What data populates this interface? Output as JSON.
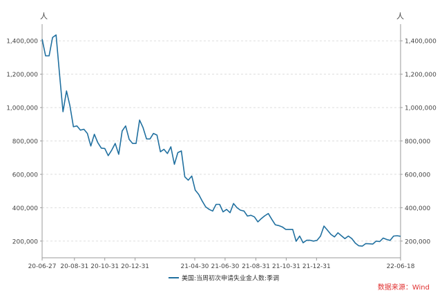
{
  "chart_data": {
    "type": "line",
    "title": "",
    "xlabel": "",
    "ylabel_left_unit": "人",
    "ylabel_right_unit": "人",
    "ylim": [
      100000,
      1500000
    ],
    "y_ticks": [
      200000,
      400000,
      600000,
      800000,
      1000000,
      1200000,
      1400000
    ],
    "y_tick_labels": [
      "200,000",
      "400,000",
      "600,000",
      "800,000",
      "1,000,000",
      "1,200,000",
      "1,400,000"
    ],
    "x_tick_labels": [
      "20-06-27",
      "20-08-31",
      "20-10-31",
      "20-12-31",
      "21-04-30",
      "21-06-30",
      "21-08-31",
      "21-10-31",
      "21-12-31",
      "22-06-18"
    ],
    "grid": "horizontal dashed",
    "legend_position": "bottom-center",
    "series": [
      {
        "name": "美国:当周初次申请失业金人数:季调",
        "color": "#1f6f9f",
        "x": [
          "20-06-27",
          "20-07-04",
          "20-07-11",
          "20-07-18",
          "20-07-25",
          "20-08-01",
          "20-08-08",
          "20-08-15",
          "20-08-22",
          "20-08-29",
          "20-09-05",
          "20-09-12",
          "20-09-19",
          "20-09-26",
          "20-10-03",
          "20-10-10",
          "20-10-17",
          "20-10-24",
          "20-10-31",
          "20-11-07",
          "20-11-14",
          "20-11-21",
          "20-11-28",
          "20-12-05",
          "20-12-12",
          "20-12-19",
          "20-12-26",
          "21-01-02",
          "21-01-09",
          "21-01-16",
          "21-01-23",
          "21-01-30",
          "21-02-06",
          "21-02-13",
          "21-02-20",
          "21-02-27",
          "21-03-06",
          "21-03-13",
          "21-03-20",
          "21-03-27",
          "21-04-03",
          "21-04-10",
          "21-04-17",
          "21-04-24",
          "21-05-01",
          "21-05-08",
          "21-05-15",
          "21-05-22",
          "21-05-29",
          "21-06-05",
          "21-06-12",
          "21-06-19",
          "21-06-26",
          "21-07-03",
          "21-07-10",
          "21-07-17",
          "21-07-24",
          "21-07-31",
          "21-08-07",
          "21-08-14",
          "21-08-21",
          "21-08-28",
          "21-09-04",
          "21-09-11",
          "21-09-18",
          "21-09-25",
          "21-10-02",
          "21-10-09",
          "21-10-16",
          "21-10-23",
          "21-10-30",
          "21-11-06",
          "21-11-13",
          "21-11-20",
          "21-11-27",
          "21-12-04",
          "21-12-11",
          "21-12-18",
          "21-12-25",
          "22-01-01",
          "22-01-08",
          "22-01-15",
          "22-01-22",
          "22-01-29",
          "22-02-05",
          "22-02-12",
          "22-02-19",
          "22-02-26",
          "22-03-05",
          "22-03-12",
          "22-03-19",
          "22-03-26",
          "22-04-02",
          "22-04-09",
          "22-04-16",
          "22-04-23",
          "22-04-30",
          "22-05-07",
          "22-05-14",
          "22-05-21",
          "22-05-28",
          "22-06-04",
          "22-06-11",
          "22-06-18"
        ],
        "values": [
          1410000,
          1310000,
          1310000,
          1420000,
          1435000,
          1200000,
          975000,
          1100000,
          1010000,
          885000,
          890000,
          865000,
          870000,
          845000,
          770000,
          840000,
          790000,
          757000,
          755000,
          712000,
          745000,
          785000,
          720000,
          860000,
          890000,
          810000,
          785000,
          785000,
          925000,
          880000,
          812000,
          812000,
          845000,
          835000,
          735000,
          750000,
          725000,
          765000,
          660000,
          730000,
          740000,
          585000,
          565000,
          590000,
          505000,
          480000,
          440000,
          405000,
          390000,
          380000,
          420000,
          420000,
          375000,
          390000,
          370000,
          425000,
          400000,
          385000,
          380000,
          350000,
          355000,
          345000,
          315000,
          335000,
          352000,
          365000,
          330000,
          298000,
          293000,
          285000,
          270000,
          270000,
          270000,
          199000,
          230000,
          190000,
          205000,
          205000,
          200000,
          205000,
          230000,
          290000,
          265000,
          240000,
          225000,
          250000,
          232000,
          215000,
          230000,
          215000,
          188000,
          172000,
          170000,
          185000,
          184000,
          182000,
          200000,
          197000,
          218000,
          210000,
          204000,
          230000,
          232000,
          229000
        ]
      }
    ],
    "source_note": "数据来源：Wind"
  }
}
